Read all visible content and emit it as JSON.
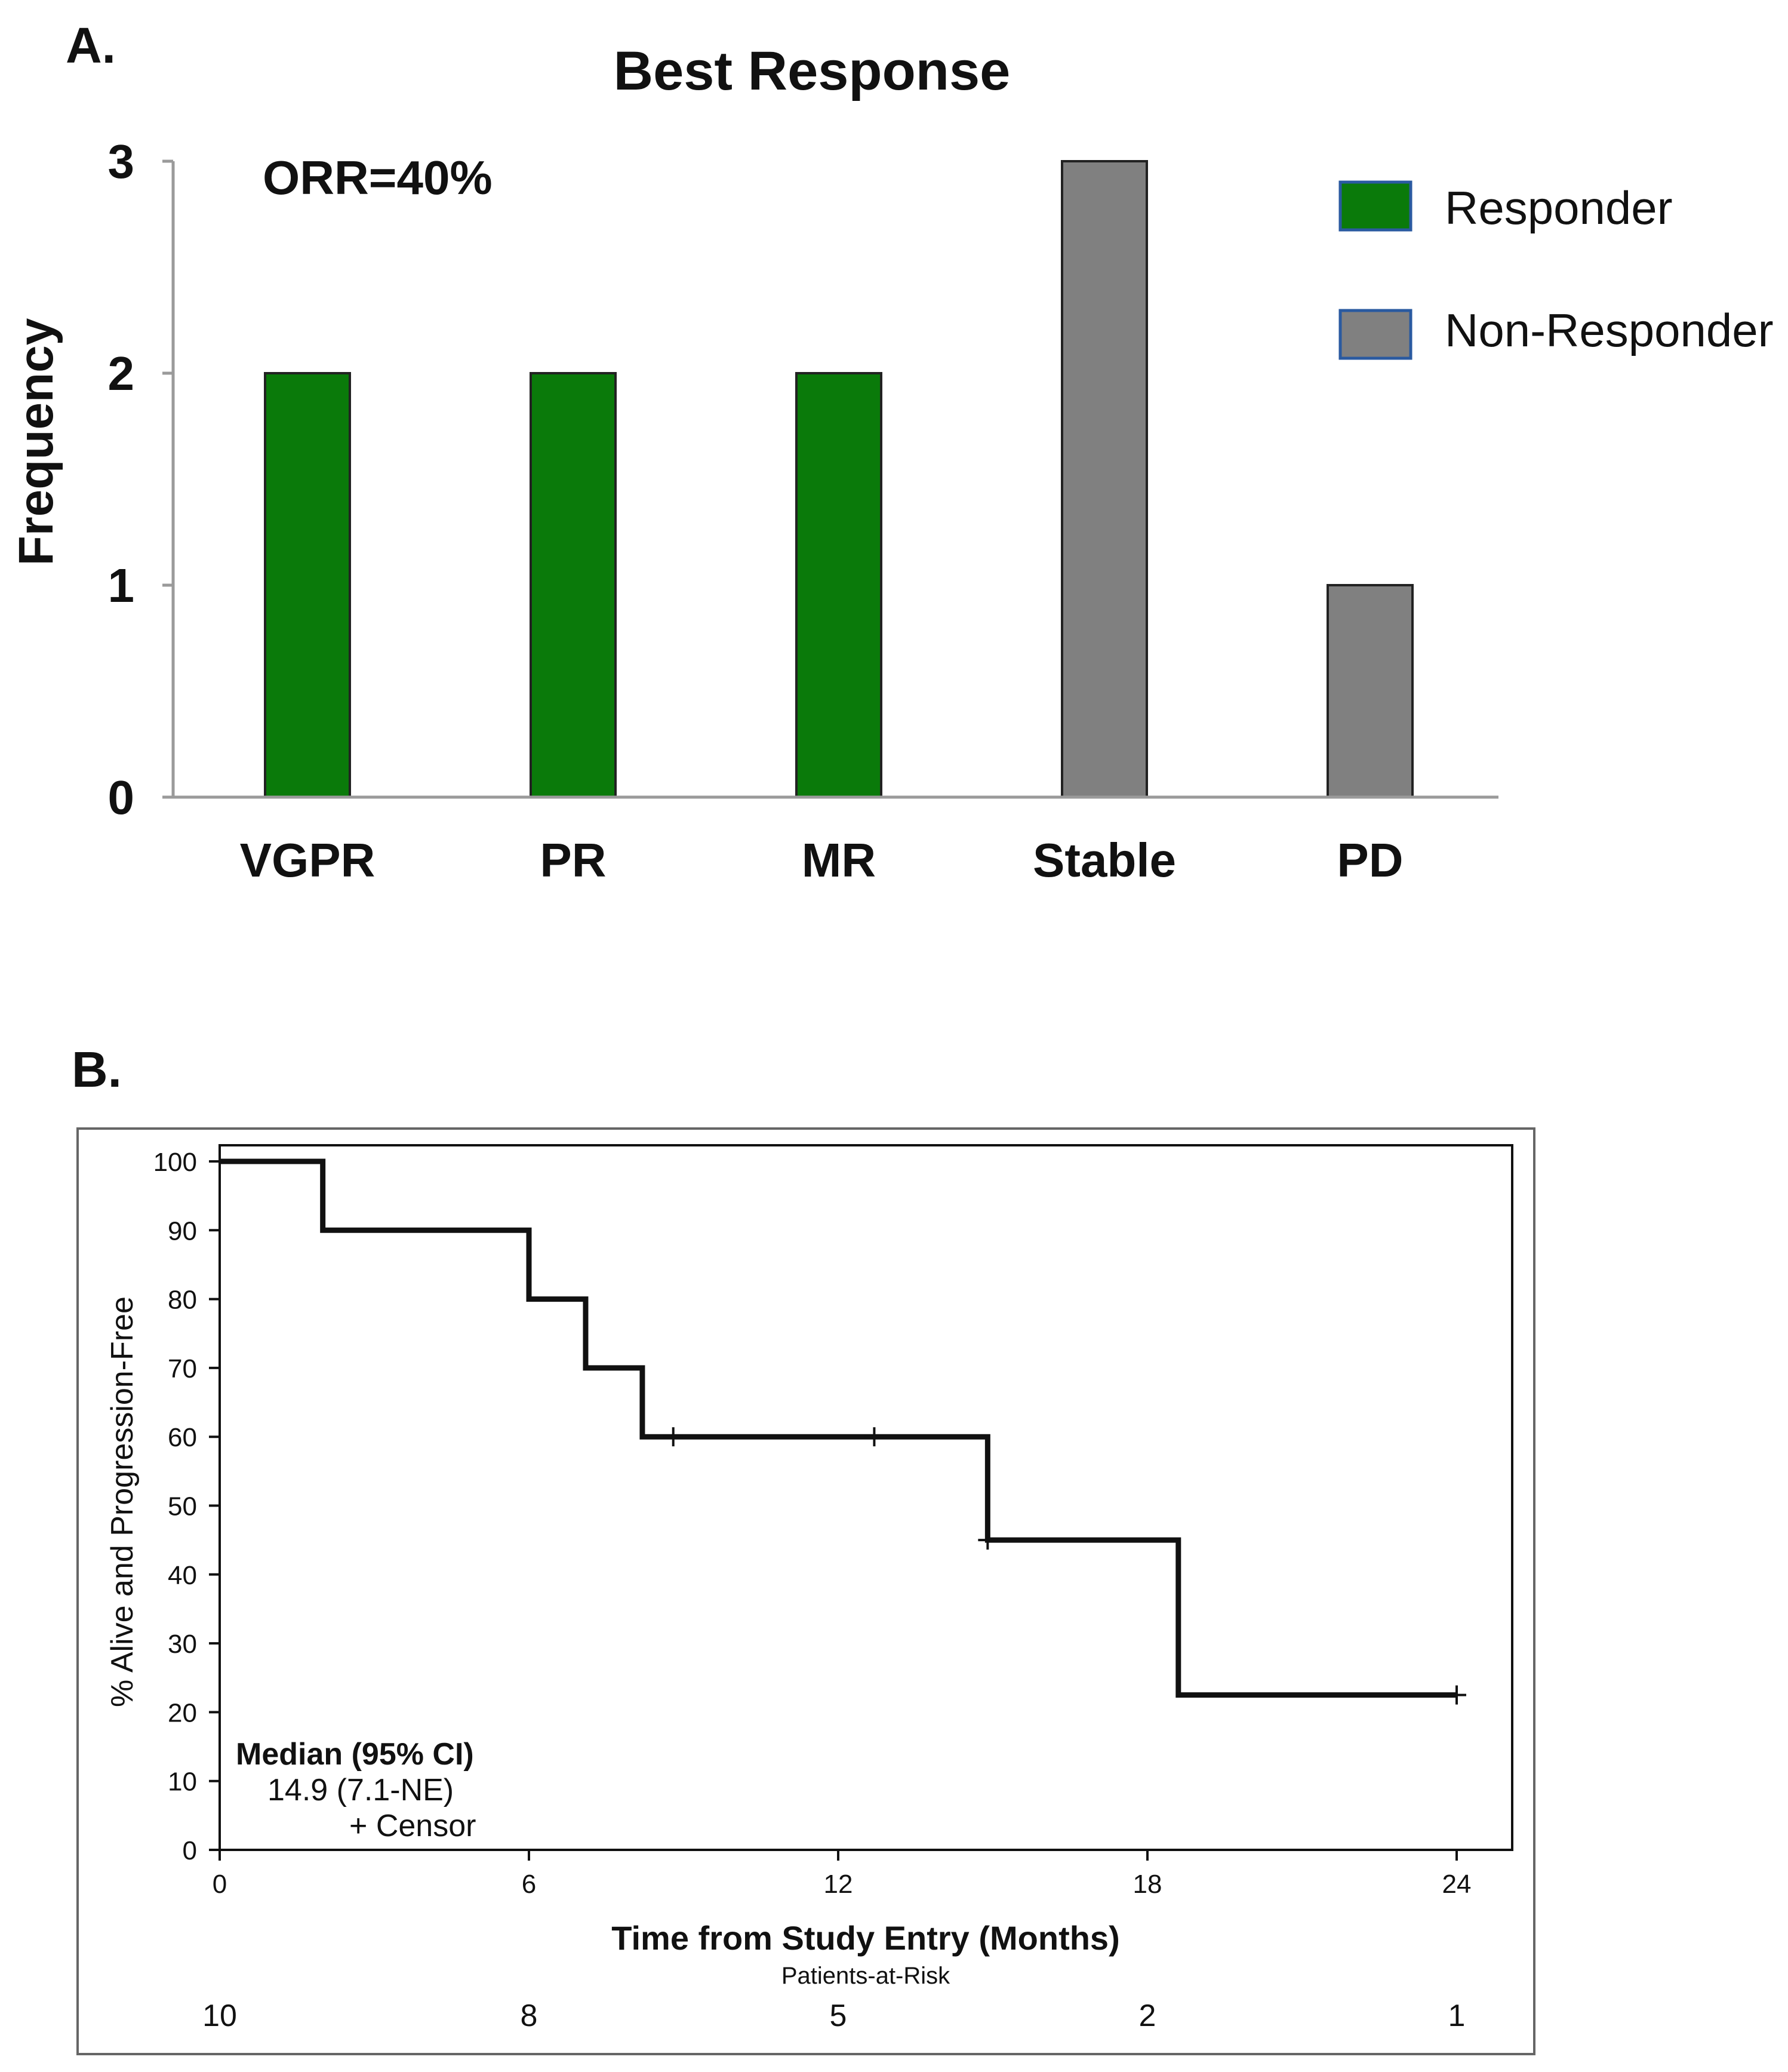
{
  "chart_data": [
    {
      "type": "bar",
      "panel_label": "A.",
      "title": "Best Response",
      "annotation": "ORR=40%",
      "xlabel": "",
      "ylabel": "Frequency",
      "ylim": [
        0,
        3
      ],
      "yticks": [
        "0",
        "1",
        "2",
        "3"
      ],
      "categories": [
        "VGPR",
        "PR",
        "MR",
        "Stable",
        "PD"
      ],
      "values": [
        2,
        2,
        2,
        3,
        1
      ],
      "groups": [
        "Responder",
        "Responder",
        "Responder",
        "Non-Responder",
        "Non-Responder"
      ],
      "legend": [
        {
          "label": "Responder",
          "color": "#0a7a0a"
        },
        {
          "label": "Non-Responder",
          "color": "#808080"
        }
      ],
      "legend_position": "top-right",
      "grid": false
    },
    {
      "type": "line",
      "subtype": "kaplan-meier",
      "panel_label": "B.",
      "xlabel": "Time from Study Entry (Months)",
      "ylabel": "% Alive and Progression-Free",
      "xlim": [
        0,
        24
      ],
      "ylim": [
        0,
        100
      ],
      "xticks": [
        "0",
        "6",
        "12",
        "18",
        "24"
      ],
      "yticks": [
        "0",
        "10",
        "20",
        "30",
        "40",
        "50",
        "60",
        "70",
        "80",
        "90",
        "100"
      ],
      "steps": [
        {
          "x": 0,
          "y": 100
        },
        {
          "x": 2,
          "y": 90
        },
        {
          "x": 6,
          "y": 80
        },
        {
          "x": 7.1,
          "y": 70
        },
        {
          "x": 8.2,
          "y": 60
        },
        {
          "x": 14.9,
          "y": 45
        },
        {
          "x": 18.6,
          "y": 22.5
        },
        {
          "x": 24,
          "y": 22.5
        }
      ],
      "censored": [
        {
          "x": 8.8,
          "y": 60
        },
        {
          "x": 12.7,
          "y": 60
        },
        {
          "x": 14.9,
          "y": 45
        },
        {
          "x": 24,
          "y": 22.5
        }
      ],
      "median_title": "Median (95% CI)",
      "median_value": "14.9 (7.1-NE)",
      "censor_legend": "+ Censor",
      "at_risk_title": "Patients-at-Risk",
      "at_risk": [
        "10",
        "8",
        "5",
        "2",
        "1"
      ]
    }
  ]
}
